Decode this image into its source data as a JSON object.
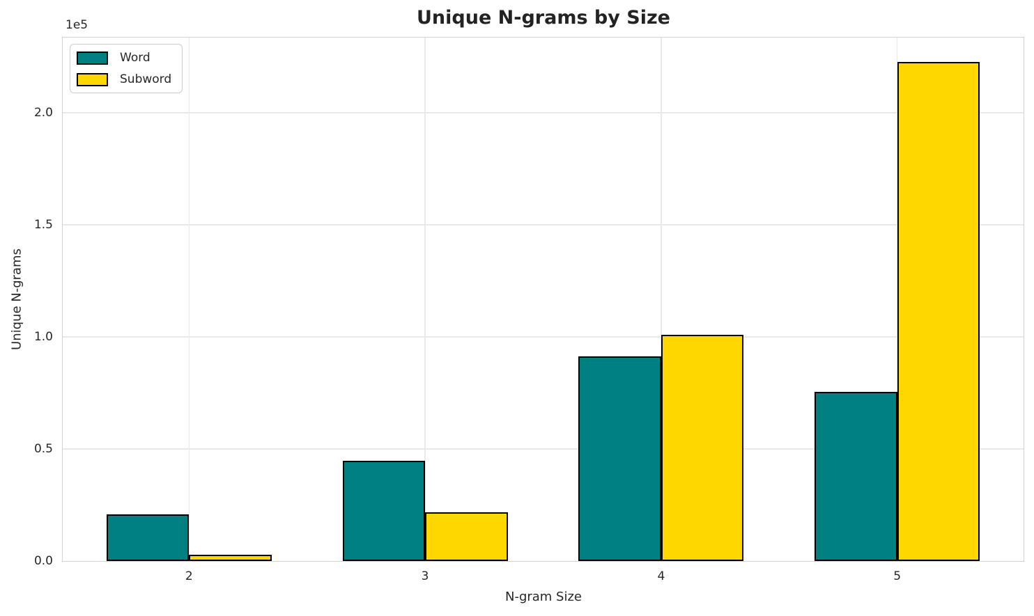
{
  "chart_data": {
    "type": "bar",
    "title": "Unique N-grams by Size",
    "xlabel": "N-gram Size",
    "ylabel": "Unique N-grams",
    "y_offset_text": "1e5",
    "categories": [
      "2",
      "3",
      "4",
      "5"
    ],
    "series": [
      {
        "name": "Word",
        "color": "#008080",
        "values": [
          20900,
          44700,
          91400,
          75600
        ]
      },
      {
        "name": "Subword",
        "color": "#FFD700",
        "values": [
          2800,
          21600,
          101000,
          222500
        ]
      }
    ],
    "ylim": [
      0,
      233500
    ],
    "yticks": {
      "values": [
        0,
        50000,
        100000,
        150000,
        200000
      ],
      "labels": [
        "0.0",
        "0.5",
        "1.0",
        "1.5",
        "2.0"
      ]
    },
    "grid": true,
    "legend": {
      "position": "upper-left",
      "entries": [
        "Word",
        "Subword"
      ]
    },
    "colors": {
      "bar_edge": "#000000",
      "grid": "#e9e9e9",
      "spine": "#d2d2d2",
      "text": "#262626"
    }
  }
}
